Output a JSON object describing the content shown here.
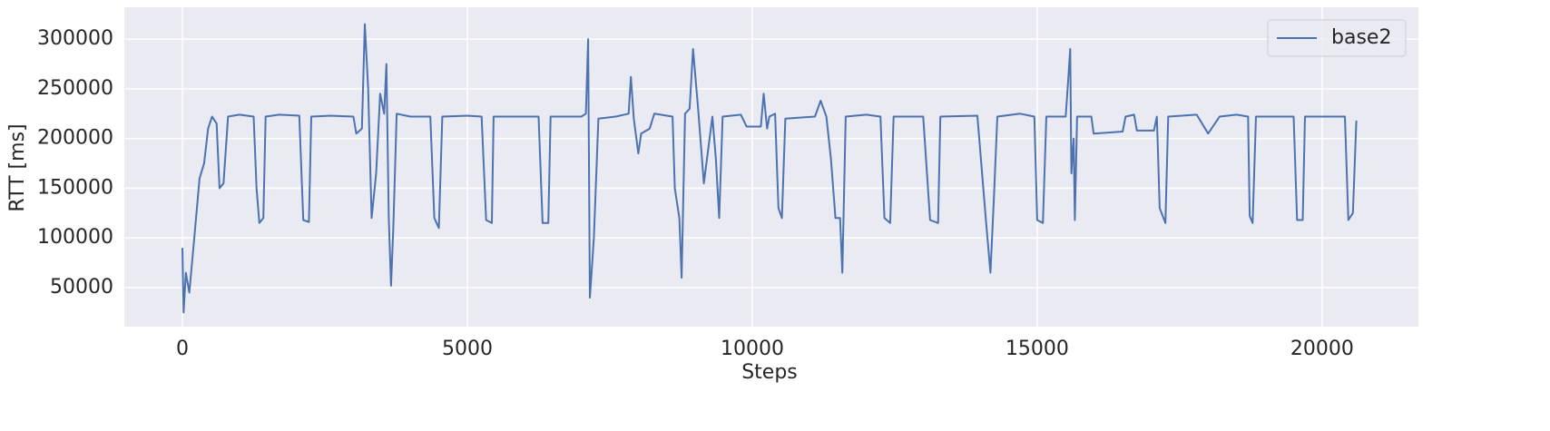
{
  "chart_data": {
    "type": "line",
    "xlabel": "Steps",
    "ylabel": "RTT [ms]",
    "x": [
      0,
      20,
      60,
      120,
      200,
      300,
      380,
      450,
      520,
      600,
      650,
      720,
      800,
      1000,
      1250,
      1300,
      1350,
      1420,
      1460,
      1700,
      2050,
      2120,
      2220,
      2260,
      2600,
      3000,
      3050,
      3150,
      3200,
      3260,
      3320,
      3400,
      3470,
      3540,
      3580,
      3620,
      3660,
      3700,
      3760,
      4000,
      4350,
      4420,
      4500,
      4560,
      5000,
      5250,
      5330,
      5430,
      5460,
      6000,
      6250,
      6320,
      6420,
      6460,
      7000,
      7080,
      7120,
      7150,
      7220,
      7300,
      7600,
      7830,
      7870,
      7920,
      8000,
      8050,
      8200,
      8280,
      8600,
      8640,
      8720,
      8760,
      8820,
      8900,
      8960,
      9050,
      9150,
      9300,
      9360,
      9420,
      9480,
      9800,
      9900,
      10150,
      10200,
      10260,
      10300,
      10400,
      10460,
      10520,
      10580,
      11100,
      11200,
      11300,
      11380,
      11460,
      11540,
      11580,
      11640,
      12000,
      12250,
      12320,
      12420,
      12480,
      13000,
      13120,
      13260,
      13300,
      13950,
      14100,
      14180,
      14240,
      14300,
      14700,
      14950,
      15000,
      15100,
      15160,
      15500,
      15540,
      15580,
      15600,
      15640,
      15660,
      15700,
      15950,
      15990,
      16500,
      16550,
      16700,
      16750,
      17050,
      17100,
      17150,
      17250,
      17300,
      17800,
      18000,
      18200,
      18500,
      18700,
      18730,
      18780,
      18840,
      19500,
      19560,
      19660,
      19700,
      20400,
      20460,
      20540,
      20600
    ],
    "series": [
      {
        "name": "base2",
        "color": "#4c72b0",
        "values": [
          90000,
          25000,
          65000,
          45000,
          95000,
          160000,
          175000,
          210000,
          222000,
          215000,
          150000,
          155000,
          222000,
          224000,
          222000,
          150000,
          115000,
          120000,
          222000,
          224000,
          223000,
          118000,
          116000,
          222000,
          223000,
          222000,
          205000,
          210000,
          315000,
          250000,
          120000,
          165000,
          245000,
          225000,
          275000,
          120000,
          52000,
          110000,
          225000,
          222000,
          222000,
          120000,
          110000,
          222000,
          223000,
          222000,
          118000,
          115000,
          222000,
          222000,
          222000,
          115000,
          115000,
          222000,
          222000,
          225000,
          300000,
          40000,
          100000,
          220000,
          222000,
          225000,
          262000,
          220000,
          185000,
          205000,
          210000,
          225000,
          222000,
          150000,
          120000,
          60000,
          225000,
          230000,
          290000,
          230000,
          155000,
          222000,
          180000,
          120000,
          222000,
          224000,
          212000,
          212000,
          245000,
          210000,
          222000,
          225000,
          130000,
          120000,
          220000,
          222000,
          238000,
          222000,
          180000,
          120000,
          120000,
          65000,
          222000,
          224000,
          222000,
          120000,
          115000,
          222000,
          222000,
          118000,
          115000,
          222000,
          223000,
          118000,
          65000,
          140000,
          222000,
          225000,
          222000,
          118000,
          115000,
          222000,
          222000,
          255000,
          290000,
          165000,
          200000,
          118000,
          222000,
          222000,
          205000,
          207000,
          222000,
          224000,
          208000,
          208000,
          222000,
          130000,
          115000,
          222000,
          224000,
          205000,
          222000,
          224000,
          222000,
          122000,
          115000,
          222000,
          222000,
          118000,
          118000,
          222000,
          222000,
          118000,
          125000,
          218000
        ]
      }
    ],
    "xlim": [
      -1020,
      21690
    ],
    "ylim": [
      10800,
      332000
    ],
    "xticks": [
      0,
      5000,
      10000,
      15000,
      20000
    ],
    "yticks": [
      50000,
      100000,
      150000,
      200000,
      250000,
      300000
    ],
    "grid": true,
    "legend": "upper right"
  }
}
